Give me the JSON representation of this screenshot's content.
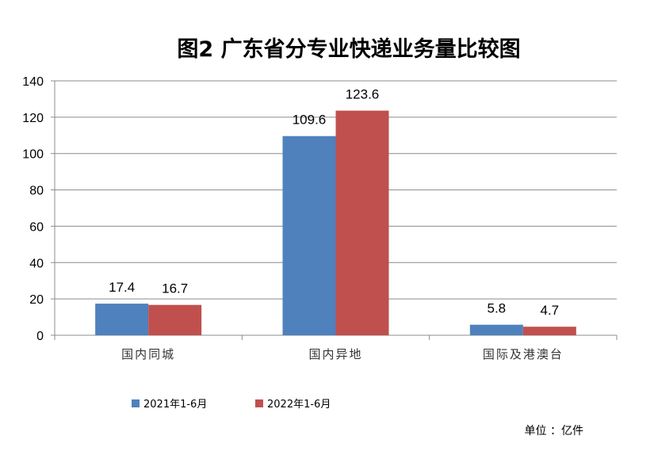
{
  "chart_data": {
    "type": "bar",
    "title": "图2 广东省分专业快递业务量比较图",
    "categories": [
      "国内同城",
      "国内异地",
      "国际及港澳台"
    ],
    "series": [
      {
        "name": "2021年1-6月",
        "values": [
          17.4,
          109.6,
          5.8
        ],
        "color": "#4f81bd"
      },
      {
        "name": "2022年1-6月",
        "values": [
          16.7,
          123.6,
          4.7
        ],
        "color": "#c0504d"
      }
    ],
    "data_labels": [
      [
        "17.4",
        "109.6",
        "5.8"
      ],
      [
        "16.7",
        "123.6",
        "4.7"
      ]
    ],
    "ylim": [
      0,
      140
    ],
    "yticks": [
      0,
      20,
      40,
      60,
      80,
      100,
      120,
      140
    ],
    "grid": true,
    "legend_position": "bottom-left",
    "unit": "单位 ：亿件"
  }
}
